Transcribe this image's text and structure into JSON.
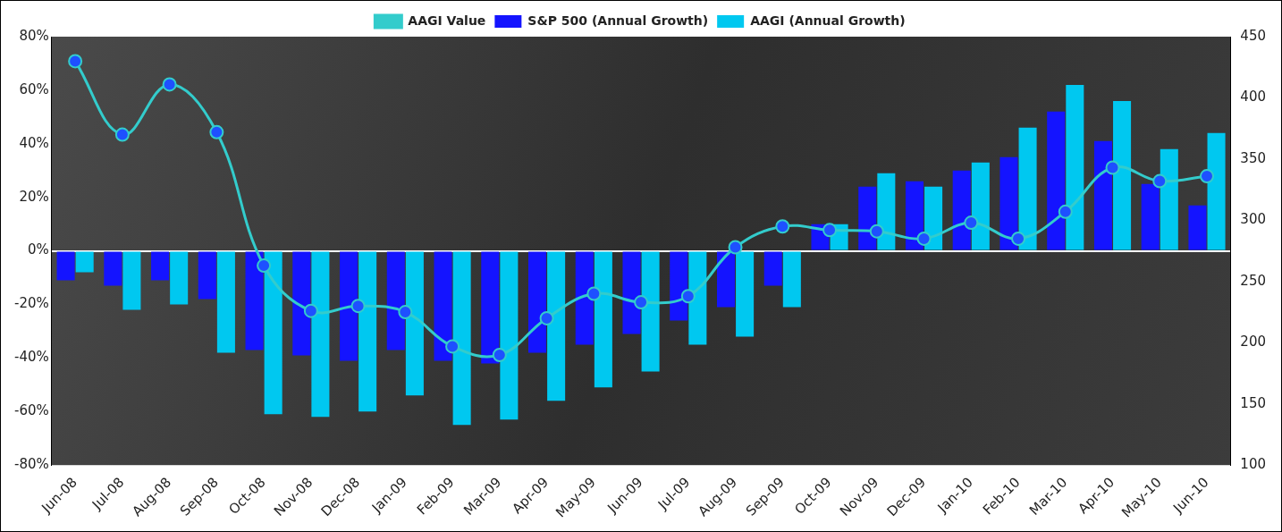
{
  "chart_data": {
    "type": "bar",
    "categories": [
      "Jun-08",
      "Jul-08",
      "Aug-08",
      "Sep-08",
      "Oct-08",
      "Nov-08",
      "Dec-08",
      "Jan-09",
      "Feb-09",
      "Mar-09",
      "Apr-09",
      "May-09",
      "Jun-09",
      "Jul-09",
      "Aug-09",
      "Sep-09",
      "Oct-09",
      "Nov-09",
      "Dec-09",
      "Jan-10",
      "Feb-10",
      "Mar-10",
      "Apr-10",
      "May-10",
      "Jun-10"
    ],
    "series": [
      {
        "name": "S&P 500 (Annual Growth)",
        "color": "#1414ff",
        "values": [
          -11,
          -13,
          -11,
          -18,
          -37,
          -39,
          -41,
          -37,
          -41,
          -42,
          -38,
          -35,
          -31,
          -26,
          -21,
          -13,
          10,
          24,
          26,
          30,
          35,
          52,
          41,
          25,
          17
        ]
      },
      {
        "name": "AAGI (Annual Growth)",
        "color": "#00c8f0",
        "values": [
          -8,
          -22,
          -20,
          -38,
          -61,
          -62,
          -60,
          -54,
          -65,
          -63,
          -56,
          -51,
          -45,
          -35,
          -32,
          -21,
          10,
          29,
          24,
          33,
          46,
          62,
          56,
          38,
          44
        ]
      },
      {
        "name": "AAGI Value",
        "color": "#33cccc",
        "type": "line",
        "marker": "circle",
        "axis": "y2",
        "values": [
          430,
          370,
          411,
          372,
          263,
          226,
          230,
          225,
          197,
          190,
          220,
          240,
          233,
          238,
          278,
          295,
          292,
          291,
          285,
          298,
          285,
          307,
          343,
          332,
          336
        ]
      }
    ],
    "ylim": [
      -80,
      80
    ],
    "yticks": [
      {
        "value": -80,
        "label": "-80%"
      },
      {
        "value": -60,
        "label": "-60%"
      },
      {
        "value": -40,
        "label": "-40%"
      },
      {
        "value": -20,
        "label": "-20%"
      },
      {
        "value": 0,
        "label": "0%"
      },
      {
        "value": 20,
        "label": "20%"
      },
      {
        "value": 40,
        "label": "40%"
      },
      {
        "value": 60,
        "label": "60%"
      },
      {
        "value": 80,
        "label": "80%"
      }
    ],
    "y2lim": [
      100,
      450
    ],
    "y2ticks": [
      100,
      150,
      200,
      250,
      300,
      350,
      400,
      450
    ],
    "grid": false,
    "legend": "top"
  }
}
